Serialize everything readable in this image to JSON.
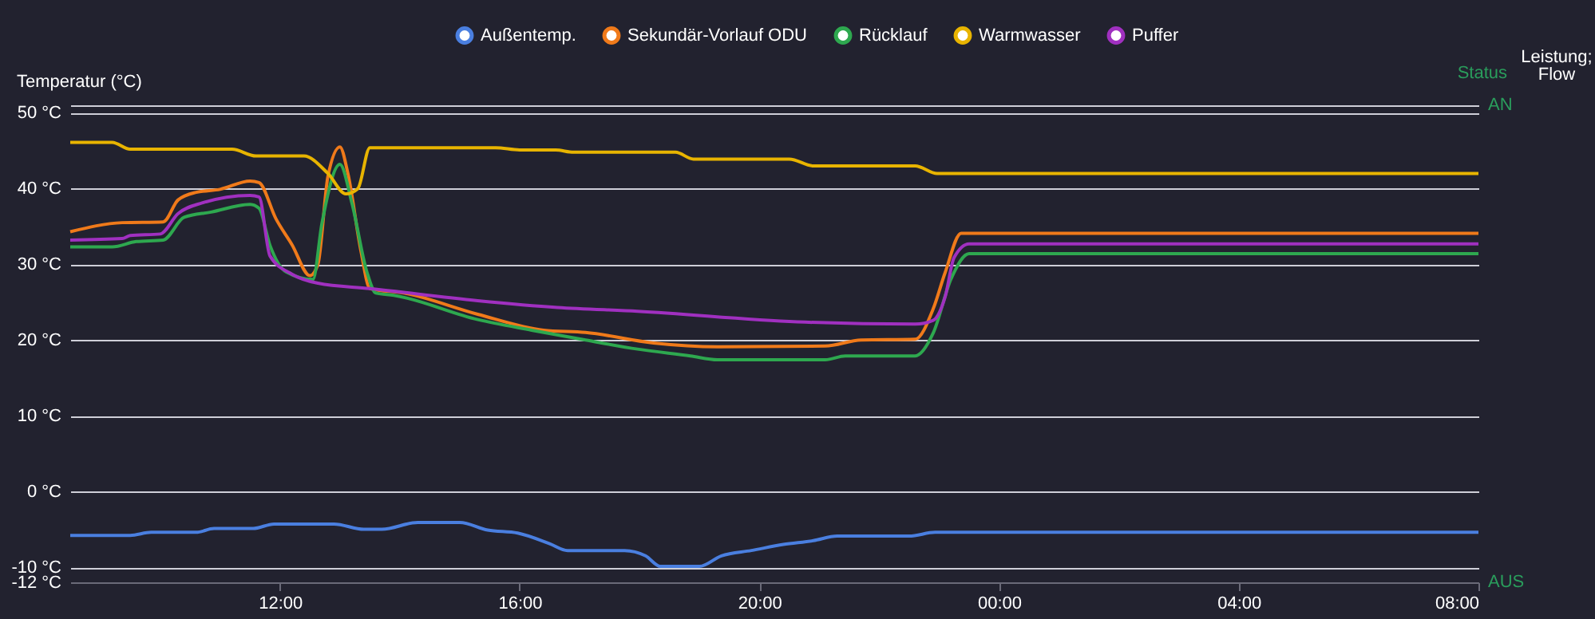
{
  "chart_data": {
    "type": "line",
    "ylabel": "Temperatur (°C)",
    "annotations": [
      "Status",
      "AN",
      "AUS",
      "Leistung; Flow"
    ],
    "xlim": [
      "--01-01T08:30",
      "--01-02T08:00"
    ],
    "xticks": [
      {
        "value": "--01-01T12:00",
        "label": "12:00"
      },
      {
        "value": "--01-01T16:00",
        "label": "16:00"
      },
      {
        "value": "--01-01T20:00",
        "label": "20:00"
      },
      {
        "value": "--01-02T00:00",
        "label": "00:00"
      },
      {
        "value": "--01-02T04:00",
        "label": "04:00"
      },
      {
        "value": "--01-02T08:00",
        "label": "08:00"
      }
    ],
    "ylim": [
      -12,
      51
    ],
    "yticks": [
      {
        "value": 50,
        "label": "50 °C"
      },
      {
        "value": 40,
        "label": "40 °C"
      },
      {
        "value": 30,
        "label": "30 °C"
      },
      {
        "value": 20,
        "label": "20 °C"
      },
      {
        "value": 10,
        "label": "10 °C"
      },
      {
        "value": 0,
        "label": "0 °C"
      },
      {
        "value": -10,
        "label": "-10 °C"
      },
      {
        "value": -12,
        "label": "-12 °C"
      }
    ],
    "grid": "y",
    "legend": "top",
    "series": [
      {
        "name": "Außentemp.",
        "color": "#4a7fe0",
        "x": [
          "--01-01T08:30",
          "--01-01T09:30",
          "--01-01T09:51",
          "--01-01T10:36",
          "--01-01T10:54",
          "--01-01T11:33",
          "--01-01T11:54",
          "--01-01T12:54",
          "--01-01T13:24",
          "--01-01T13:42",
          "--01-01T14:18",
          "--01-01T15:00",
          "--01-01T15:28",
          "--01-01T15:58",
          "--01-01T16:30",
          "--01-01T16:48",
          "--01-01T17:45",
          "--01-01T18:06",
          "--01-01T18:21",
          "--01-01T19:00",
          "--01-01T19:22",
          "--01-01T19:52",
          "--01-01T20:24",
          "--01-01T20:54",
          "--01-01T21:18",
          "--01-01T22:30",
          "--01-01T22:56",
          "--01-02T08:00"
        ],
        "values": [
          -5.8,
          -5.8,
          -5.4,
          -5.4,
          -4.9,
          -4.9,
          -4.3,
          -4.3,
          -5.0,
          -5.0,
          -4.1,
          -4.1,
          -5.1,
          -5.5,
          -6.9,
          -7.8,
          -7.8,
          -8.5,
          -9.9,
          -9.9,
          -8.5,
          -7.8,
          -7.0,
          -6.5,
          -5.9,
          -5.9,
          -5.4,
          -5.4
        ]
      },
      {
        "name": "Sekundär-Vorlauf ODU",
        "color": "#f07a1a",
        "x": [
          "--01-01T08:30",
          "--01-01T09:22",
          "--01-01T10:03",
          "--01-01T10:18",
          "--01-01T10:36",
          "--01-01T11:00",
          "--01-01T11:30",
          "--01-01T11:39",
          "--01-01T11:56",
          "--01-01T12:12",
          "--01-01T12:30",
          "--01-01T12:38",
          "--01-01T12:48",
          "--01-01T13:00",
          "--01-01T13:08",
          "--01-01T13:21",
          "--01-01T13:30",
          "--01-01T14:04",
          "--01-01T15:18",
          "--01-01T16:24",
          "--01-01T17:06",
          "--01-01T18:14",
          "--01-01T19:18",
          "--01-01T21:06",
          "--01-01T21:42",
          "--01-01T22:36",
          "--01-01T22:54",
          "--01-01T23:06",
          "--01-01T23:22",
          "--01-02T08:00"
        ],
        "values": [
          34.3,
          35.5,
          35.6,
          38.5,
          39.5,
          39.9,
          41,
          40.8,
          36,
          32.6,
          28.5,
          30,
          41.6,
          45.5,
          42,
          31.8,
          26.8,
          26.2,
          23.4,
          21.3,
          21.0,
          19.6,
          19.1,
          19.2,
          20.0,
          20.1,
          24.1,
          28.9,
          34.1,
          34.1
        ]
      },
      {
        "name": "Rücklauf",
        "color": "#2ea84f",
        "x": [
          "--01-01T08:30",
          "--01-01T09:12",
          "--01-01T09:36",
          "--01-01T10:03",
          "--01-01T10:24",
          "--01-01T10:51",
          "--01-01T11:30",
          "--01-01T11:39",
          "--01-01T11:50",
          "--01-01T12:06",
          "--01-01T12:33",
          "--01-01T12:42",
          "--01-01T13:00",
          "--01-01T13:12",
          "--01-01T13:27",
          "--01-01T13:36",
          "--01-01T13:54",
          "--01-01T15:18",
          "--01-01T16:12",
          "--01-01T17:06",
          "--01-01T17:58",
          "--01-01T18:51",
          "--01-01T19:18",
          "--01-01T21:06",
          "--01-01T21:26",
          "--01-01T22:36",
          "--01-01T22:54",
          "--01-01T23:12",
          "--01-01T23:30",
          "--01-02T08:00"
        ],
        "values": [
          32.3,
          32.3,
          33.0,
          33.2,
          36.2,
          36.9,
          37.9,
          37.4,
          32.5,
          29,
          28,
          35.4,
          43.2,
          38.1,
          29,
          26.2,
          25.9,
          22.7,
          21.3,
          20.0,
          18.8,
          17.9,
          17.4,
          17.4,
          17.9,
          17.9,
          20.9,
          28.1,
          31.4,
          31.4
        ]
      },
      {
        "name": "Warmwasser",
        "color": "#e8b400",
        "x": [
          "--01-01T08:30",
          "--01-01T09:12",
          "--01-01T09:30",
          "--01-01T11:12",
          "--01-01T11:36",
          "--01-01T12:24",
          "--01-01T12:48",
          "--01-01T13:06",
          "--01-01T13:18",
          "--01-01T13:30",
          "--01-01T15:36",
          "--01-01T16:00",
          "--01-01T16:36",
          "--01-01T16:54",
          "--01-01T18:36",
          "--01-01T18:54",
          "--01-01T20:30",
          "--01-01T20:54",
          "--01-01T22:36",
          "--01-01T22:58",
          "--01-02T08:00"
        ],
        "values": [
          46.1,
          46.1,
          45.2,
          45.2,
          44.3,
          44.3,
          42,
          39.3,
          40,
          45.4,
          45.4,
          45.1,
          45.1,
          44.8,
          44.8,
          43.9,
          43.9,
          43.0,
          43.0,
          42.0,
          42.0
        ]
      },
      {
        "name": "Puffer",
        "color": "#a030c0",
        "x": [
          "--01-01T08:30",
          "--01-01T09:22",
          "--01-01T09:30",
          "--01-01T10:00",
          "--01-01T10:18",
          "--01-01T10:42",
          "--01-01T11:30",
          "--01-01T11:39",
          "--01-01T11:50",
          "--01-01T12:12",
          "--01-01T12:38",
          "--01-01T13:30",
          "--01-01T15:18",
          "--01-01T16:38",
          "--01-01T17:58",
          "--01-01T20:38",
          "--01-01T22:36",
          "--01-01T22:54",
          "--01-01T23:06",
          "--01-01T23:15",
          "--01-01T23:30",
          "--01-02T08:00"
        ],
        "values": [
          33.2,
          33.4,
          33.8,
          34,
          36.7,
          38.1,
          39.1,
          38.9,
          31.1,
          28.7,
          27.5,
          26.8,
          25.2,
          24.3,
          23.8,
          22.4,
          22.1,
          22.6,
          25.7,
          30.9,
          32.7,
          32.7
        ]
      }
    ]
  }
}
